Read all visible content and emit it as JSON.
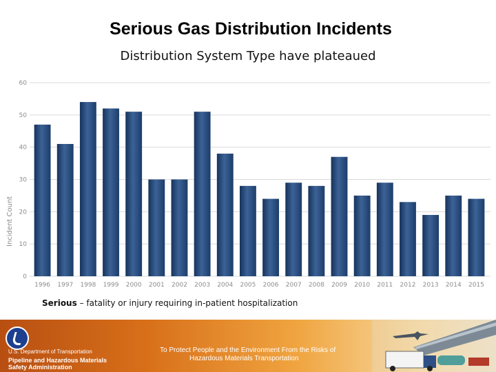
{
  "slide": {
    "title": "Serious Gas Distribution Incidents",
    "subtitle": "Distribution System Type have plateaued",
    "footnote_bold": "Serious",
    "footnote_rest": " – fatality or injury requiring in-patient hospitalization"
  },
  "chart_data": {
    "type": "bar",
    "title": "",
    "xlabel": "",
    "ylabel": "Incident Count",
    "categories": [
      "1996",
      "1997",
      "1998",
      "1999",
      "2000",
      "2001",
      "2002",
      "2003",
      "2004",
      "2005",
      "2006",
      "2007",
      "2008",
      "2009",
      "2010",
      "2011",
      "2012",
      "2013",
      "2014",
      "2015"
    ],
    "values": [
      47,
      41,
      54,
      52,
      51,
      30,
      30,
      51,
      38,
      28,
      24,
      29,
      28,
      37,
      25,
      29,
      23,
      19,
      25,
      24
    ],
    "ylim": [
      0,
      60
    ],
    "yticks": [
      "0",
      "10",
      "20",
      "30",
      "40",
      "50",
      "60"
    ],
    "grid": true,
    "legend": "none",
    "colors": {
      "bar": "#24497a",
      "bar_light": "#4f72a3",
      "grid": "#d9d9d9",
      "axis_text": "#8c8c8c"
    }
  },
  "footer": {
    "agency": "U.S. Department of Transportation",
    "administration_line1": "Pipeline and Hazardous Materials",
    "administration_line2": "Safety Administration",
    "mission_line1": "To Protect People and the Environment From the Risks of",
    "mission_line2": "Hazardous Materials Transportation",
    "logo_icon": "dot-logo-icon",
    "art_icon": "transportation-collage-icon"
  }
}
